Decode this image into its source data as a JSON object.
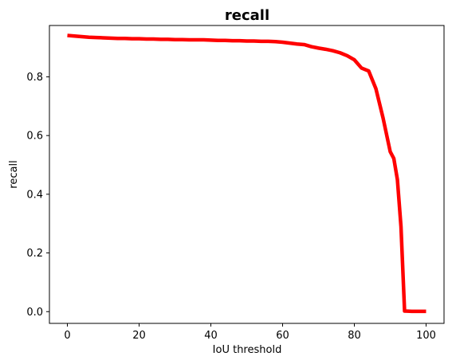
{
  "chart_data": {
    "type": "line",
    "title": "recall",
    "xlabel": "IoU threshold",
    "ylabel": "recall",
    "xlim": [
      -5,
      105
    ],
    "ylim": [
      -0.04,
      0.975
    ],
    "xticks": [
      0,
      20,
      40,
      60,
      80,
      100
    ],
    "yticks": [
      0.0,
      0.2,
      0.4,
      0.6,
      0.8
    ],
    "ytick_labels": [
      "0.0",
      "0.2",
      "0.4",
      "0.6",
      "0.8"
    ],
    "grid": false,
    "series": [
      {
        "color": "#ff0000",
        "x": [
          0,
          2,
          4,
          6,
          8,
          10,
          12,
          14,
          16,
          18,
          20,
          22,
          24,
          26,
          28,
          30,
          32,
          34,
          36,
          38,
          40,
          42,
          44,
          46,
          48,
          50,
          52,
          54,
          56,
          58,
          60,
          62,
          64,
          66,
          68,
          70,
          72,
          74,
          76,
          78,
          80,
          82,
          84,
          86,
          88,
          90,
          91,
          92,
          93,
          94,
          96,
          98,
          100
        ],
        "y": [
          0.941,
          0.939,
          0.937,
          0.935,
          0.934,
          0.933,
          0.932,
          0.931,
          0.931,
          0.93,
          0.93,
          0.929,
          0.929,
          0.928,
          0.928,
          0.927,
          0.927,
          0.926,
          0.926,
          0.926,
          0.925,
          0.924,
          0.924,
          0.923,
          0.923,
          0.922,
          0.922,
          0.921,
          0.921,
          0.92,
          0.918,
          0.915,
          0.912,
          0.91,
          0.903,
          0.898,
          0.894,
          0.889,
          0.882,
          0.872,
          0.858,
          0.83,
          0.82,
          0.76,
          0.66,
          0.545,
          0.522,
          0.45,
          0.29,
          0.002,
          0.001,
          0.001,
          0.001
        ]
      }
    ]
  }
}
